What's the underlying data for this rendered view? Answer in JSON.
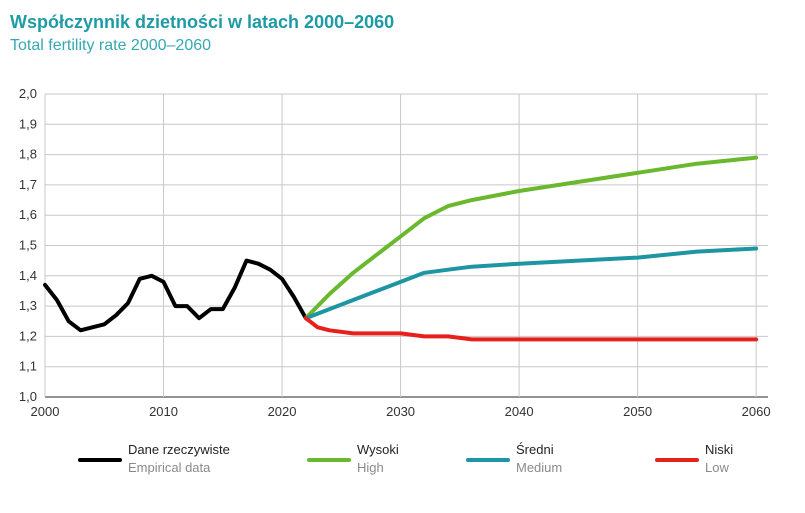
{
  "title": "Współczynnik dzietności w latach 2000–2060",
  "subtitle": "Total fertility rate 2000–2060",
  "legend": {
    "empirical": {
      "pl": "Dane rzeczywiste",
      "en": "Empirical data"
    },
    "high": {
      "pl": "Wysoki",
      "en": "High"
    },
    "medium": {
      "pl": "Średni",
      "en": "Medium"
    },
    "low": {
      "pl": "Niski",
      "en": "Low"
    }
  },
  "colors": {
    "empirical": "#000000",
    "high": "#6ab82e",
    "medium": "#1e95a3",
    "low": "#e8201c",
    "grid": "#c8c8c8"
  },
  "chart_data": {
    "type": "line",
    "title": "Współczynnik dzietności w latach 2000–2060",
    "subtitle": "Total fertility rate 2000–2060",
    "xlim": [
      2000,
      2061
    ],
    "ylim": [
      1.0,
      2.0
    ],
    "x_ticks": [
      "2000",
      "2010",
      "2020",
      "2030",
      "2040",
      "2050",
      "2060"
    ],
    "y_ticks": [
      "1,0",
      "1,1",
      "1,2",
      "1,3",
      "1,4",
      "1,5",
      "1,6",
      "1,7",
      "1,8",
      "1,9",
      "2,0"
    ],
    "grid": true,
    "legend_position": "bottom",
    "series": [
      {
        "name": "Dane rzeczywiste / Empirical data",
        "key": "empirical",
        "x": [
          2000,
          2001,
          2002,
          2003,
          2004,
          2005,
          2006,
          2007,
          2008,
          2009,
          2010,
          2011,
          2012,
          2013,
          2014,
          2015,
          2016,
          2017,
          2018,
          2019,
          2020,
          2021,
          2022
        ],
        "y": [
          1.37,
          1.32,
          1.25,
          1.22,
          1.23,
          1.24,
          1.27,
          1.31,
          1.39,
          1.4,
          1.38,
          1.3,
          1.3,
          1.26,
          1.29,
          1.29,
          1.36,
          1.45,
          1.44,
          1.42,
          1.39,
          1.33,
          1.26
        ]
      },
      {
        "name": "Wysoki / High",
        "key": "high",
        "x": [
          2022,
          2024,
          2026,
          2028,
          2030,
          2032,
          2034,
          2036,
          2040,
          2045,
          2050,
          2055,
          2060
        ],
        "y": [
          1.26,
          1.34,
          1.41,
          1.47,
          1.53,
          1.59,
          1.63,
          1.65,
          1.68,
          1.71,
          1.74,
          1.77,
          1.79
        ]
      },
      {
        "name": "Średni / Medium",
        "key": "medium",
        "x": [
          2022,
          2024,
          2026,
          2028,
          2030,
          2032,
          2034,
          2036,
          2040,
          2045,
          2050,
          2055,
          2060
        ],
        "y": [
          1.26,
          1.29,
          1.32,
          1.35,
          1.38,
          1.41,
          1.42,
          1.43,
          1.44,
          1.45,
          1.46,
          1.48,
          1.49
        ]
      },
      {
        "name": "Niski / Low",
        "key": "low",
        "x": [
          2022,
          2023,
          2024,
          2026,
          2028,
          2030,
          2032,
          2034,
          2036,
          2040,
          2045,
          2050,
          2055,
          2060
        ],
        "y": [
          1.26,
          1.23,
          1.22,
          1.21,
          1.21,
          1.21,
          1.2,
          1.2,
          1.19,
          1.19,
          1.19,
          1.19,
          1.19,
          1.19
        ]
      }
    ]
  }
}
